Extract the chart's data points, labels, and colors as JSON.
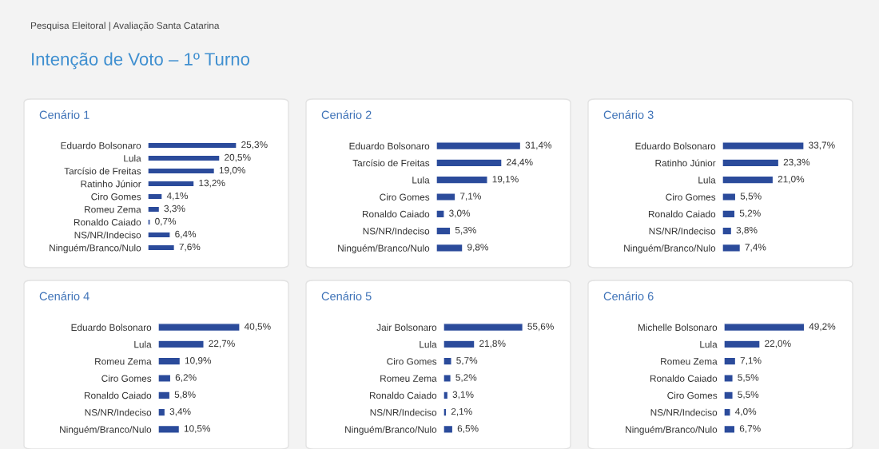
{
  "chart_data": [
    {
      "type": "bar",
      "orientation": "horizontal",
      "title": "Cenário 1",
      "annotations": [
        "Pesquisa Eleitoral | Avaliação Santa Catarina",
        "Intenção de Voto – 1º Turno"
      ],
      "tick_labels": "y",
      "color": "#2b4b9b",
      "categories": [
        "Eduardo Bolsonaro",
        "Lula",
        "Tarcísio de Freitas",
        "Ratinho Júnior",
        "Ciro Gomes",
        "Romeu Zema",
        "Ronaldo Caiado",
        "NS/NR/Indeciso",
        "Ninguém/Branco/Nulo"
      ],
      "values": [
        25.3,
        20.5,
        19.0,
        13.2,
        4.1,
        3.3,
        0.7,
        6.4,
        7.6
      ],
      "value_labels": [
        "25,3%",
        "20,5%",
        "19,0%",
        "13,2%",
        "4,1%",
        "3,3%",
        "0,7%",
        "6,4%",
        "7,6%"
      ]
    },
    {
      "type": "bar",
      "orientation": "horizontal",
      "title": "Cenário 2",
      "tick_labels": "y",
      "color": "#2b4b9b",
      "categories": [
        "Eduardo Bolsonaro",
        "Tarcísio de Freitas",
        "Lula",
        "Ciro Gomes",
        "Ronaldo Caiado",
        "NS/NR/Indeciso",
        "Ninguém/Branco/Nulo"
      ],
      "values": [
        31.4,
        24.4,
        19.1,
        7.1,
        3.0,
        5.3,
        9.8
      ],
      "value_labels": [
        "31,4%",
        "24,4%",
        "19,1%",
        "7,1%",
        "3,0%",
        "5,3%",
        "9,8%"
      ]
    },
    {
      "type": "bar",
      "orientation": "horizontal",
      "title": "Cenário 3",
      "tick_labels": "y",
      "color": "#2b4b9b",
      "categories": [
        "Eduardo Bolsonaro",
        "Ratinho Júnior",
        "Lula",
        "Ciro Gomes",
        "Ronaldo Caiado",
        "NS/NR/Indeciso",
        "Ninguém/Branco/Nulo"
      ],
      "values": [
        33.7,
        23.3,
        21.0,
        5.5,
        5.2,
        3.8,
        7.4
      ],
      "value_labels": [
        "33,7%",
        "23,3%",
        "21,0%",
        "5,5%",
        "5,2%",
        "3,8%",
        "7,4%"
      ]
    },
    {
      "type": "bar",
      "orientation": "horizontal",
      "title": "Cenário 4",
      "tick_labels": "y",
      "color": "#2b4b9b",
      "categories": [
        "Eduardo Bolsonaro",
        "Lula",
        "Romeu Zema",
        "Ciro Gomes",
        "Ronaldo Caiado",
        "NS/NR/Indeciso",
        "Ninguém/Branco/Nulo"
      ],
      "values": [
        40.5,
        22.7,
        10.9,
        6.2,
        5.8,
        3.4,
        10.5
      ],
      "value_labels": [
        "40,5%",
        "22,7%",
        "10,9%",
        "6,2%",
        "5,8%",
        "3,4%",
        "10,5%"
      ]
    },
    {
      "type": "bar",
      "orientation": "horizontal",
      "title": "Cenário 5",
      "tick_labels": "y",
      "color": "#2b4b9b",
      "categories": [
        "Jair Bolsonaro",
        "Lula",
        "Ciro Gomes",
        "Romeu Zema",
        "Ronaldo Caiado",
        "NS/NR/Indeciso",
        "Ninguém/Branco/Nulo"
      ],
      "values": [
        55.6,
        21.8,
        5.7,
        5.2,
        3.1,
        2.1,
        6.5
      ],
      "value_labels": [
        "55,6%",
        "21,8%",
        "5,7%",
        "5,2%",
        "3,1%",
        "2,1%",
        "6,5%"
      ]
    },
    {
      "type": "bar",
      "orientation": "horizontal",
      "title": "Cenário 6",
      "tick_labels": "y",
      "color": "#2b4b9b",
      "categories": [
        "Michelle Bolsonaro",
        "Lula",
        "Romeu Zema",
        "Ronaldo Caiado",
        "Ciro Gomes",
        "NS/NR/Indeciso",
        "Ninguém/Branco/Nulo"
      ],
      "values": [
        49.2,
        22.0,
        7.1,
        5.5,
        5.5,
        4.0,
        6.7
      ],
      "value_labels": [
        "49,2%",
        "22,0%",
        "7,1%",
        "5,5%",
        "5,5%",
        "4,0%",
        "6,7%"
      ]
    }
  ]
}
